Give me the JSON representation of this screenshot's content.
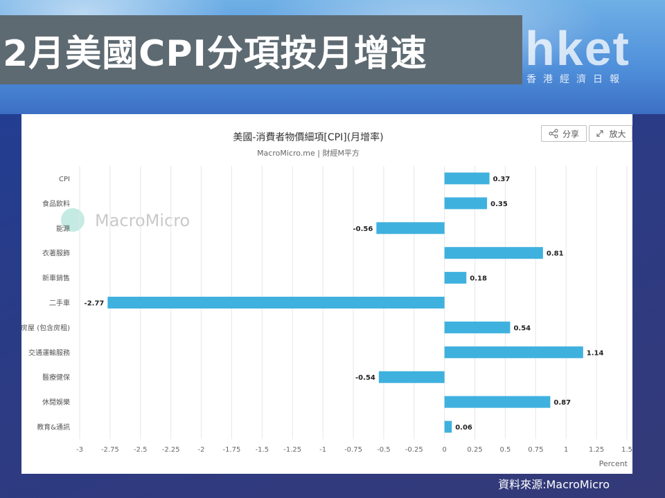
{
  "headline": "2月美國CPI分項按月增速",
  "brand": {
    "logo_text": "hket",
    "logo_sub": "香港經濟日報"
  },
  "toolbar": {
    "share_label": "分享",
    "expand_label": "放大"
  },
  "watermark": "MacroMicro",
  "source_note": "資料來源:MacroMicro",
  "colors": {
    "bar": "#3fb1de",
    "grid": "#e6e6e6",
    "title_bg": "#5e6a72"
  },
  "chart_data": {
    "type": "bar",
    "orientation": "horizontal",
    "title": "美國-消費者物價細項[CPI](月增率)",
    "subtitle": "MacroMicro.me | 財經M平方",
    "xlabel": "Percent",
    "xlim": [
      -3,
      1.5
    ],
    "xticks": [
      -3,
      -2.75,
      -2.5,
      -2.25,
      -2,
      -1.75,
      -1.5,
      -1.25,
      -1,
      -0.75,
      -0.5,
      -0.25,
      0,
      0.25,
      0.5,
      0.75,
      1,
      1.25,
      1.5
    ],
    "categories": [
      "CPI",
      "食品飲料",
      "能源",
      "衣著服飾",
      "新車銷售",
      "二手車",
      "房屋 (包含房租)",
      "交通運輸服務",
      "醫療健保",
      "休閒娛樂",
      "教育&通訊"
    ],
    "values": [
      0.37,
      0.35,
      -0.56,
      0.81,
      0.18,
      -2.77,
      0.54,
      1.14,
      -0.54,
      0.87,
      0.06
    ],
    "value_labels": [
      "0.37",
      "0.35",
      "-0.56",
      "0.81",
      "0.18",
      "-2.77",
      "0.54",
      "1.14",
      "-0.54",
      "0.87",
      "0.06"
    ],
    "grid": true,
    "legend": "none"
  }
}
